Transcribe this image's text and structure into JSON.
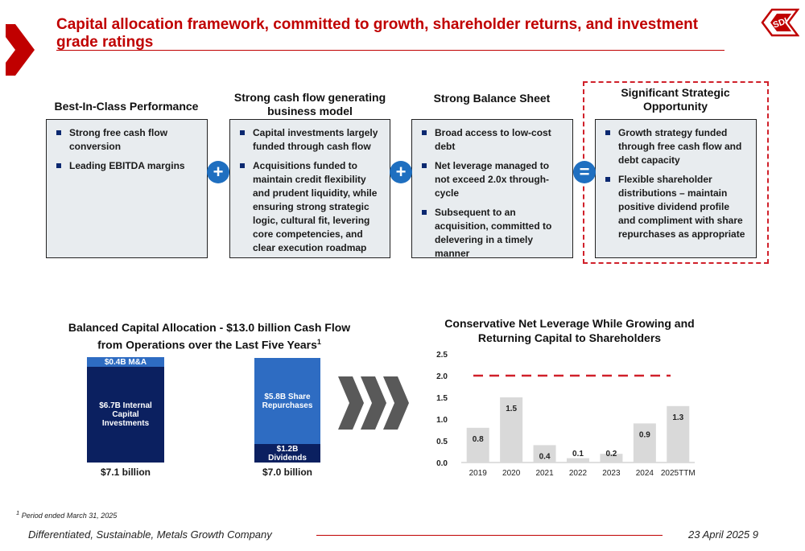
{
  "header": {
    "title": "Capital allocation framework, committed to growth, shareholder returns, and investment grade ratings",
    "logo_text": "SDI"
  },
  "framework": {
    "columns": [
      {
        "heading": "Best-In-Class Performance",
        "bullets": [
          "Strong free cash flow conversion",
          "Leading EBITDA margins"
        ]
      },
      {
        "heading": "Strong cash flow generating business model",
        "bullets": [
          "Capital investments largely funded through cash flow",
          "Acquisitions funded to maintain credit flexibility and prudent liquidity, while ensuring strong strategic logic, cultural fit, levering core competencies, and clear execution roadmap"
        ]
      },
      {
        "heading": "Strong Balance Sheet",
        "bullets": [
          "Broad access to low-cost debt",
          "Net leverage managed to not exceed 2.0x through-cycle",
          "Subsequent to an acquisition, committed to delevering in a timely manner"
        ]
      },
      {
        "heading": "Significant Strategic Opportunity",
        "bullets": [
          "Growth strategy funded through free cash flow and debt capacity",
          "Flexible shareholder distributions – maintain positive dividend profile and compliment with share repurchases as appropriate"
        ]
      }
    ],
    "operators": [
      "+",
      "+",
      "="
    ]
  },
  "allocation": {
    "title": "Balanced Capital Allocation - $13.0 billion Cash Flow from Operations over the Last Five Years",
    "title_sup": "1",
    "left_bar": {
      "segments": [
        {
          "label": "$0.4B M&A",
          "value": 0.4,
          "color": "#2e6cc2"
        },
        {
          "label": "$6.7B Internal Capital Investments",
          "value": 6.7,
          "color": "#0b2060"
        }
      ],
      "total_label": "$7.1 billion"
    },
    "right_bar": {
      "segments": [
        {
          "label": "$5.8B Share Repurchases",
          "value": 5.8,
          "color": "#2e6cc2"
        },
        {
          "label": "$1.2B Dividends",
          "value": 1.2,
          "color": "#0b2060"
        }
      ],
      "total_label": "$7.0 billion"
    }
  },
  "chart_data": {
    "type": "bar",
    "title": "Conservative Net Leverage While Growing and Returning Capital to Shareholders",
    "categories": [
      "2019",
      "2020",
      "2021",
      "2022",
      "2023",
      "2024",
      "2025TTM"
    ],
    "values": [
      0.8,
      1.5,
      0.4,
      0.1,
      0.2,
      0.9,
      1.3
    ],
    "value_labels": [
      "0.8",
      "1.5",
      "0.4",
      "0.1",
      "0.2",
      "0.9",
      "1.3"
    ],
    "yticks": [
      "0.0",
      "0.5",
      "1.0",
      "1.5",
      "2.0",
      "2.5"
    ],
    "ylim": [
      0,
      2.5
    ],
    "threshold": 2.0,
    "threshold_color": "#d0202a",
    "bar_color": "#d9d9d9",
    "grid": false
  },
  "footnote": "Period ended March 31, 2025",
  "footnote_sup": "1",
  "footer": {
    "left": "Differentiated, Sustainable, Metals Growth Company",
    "right": "23 April 2025  9"
  },
  "colors": {
    "accent": "#c00000",
    "navy": "#0b2060",
    "blue": "#2e6cc2",
    "plus": "#1f6fc0"
  }
}
